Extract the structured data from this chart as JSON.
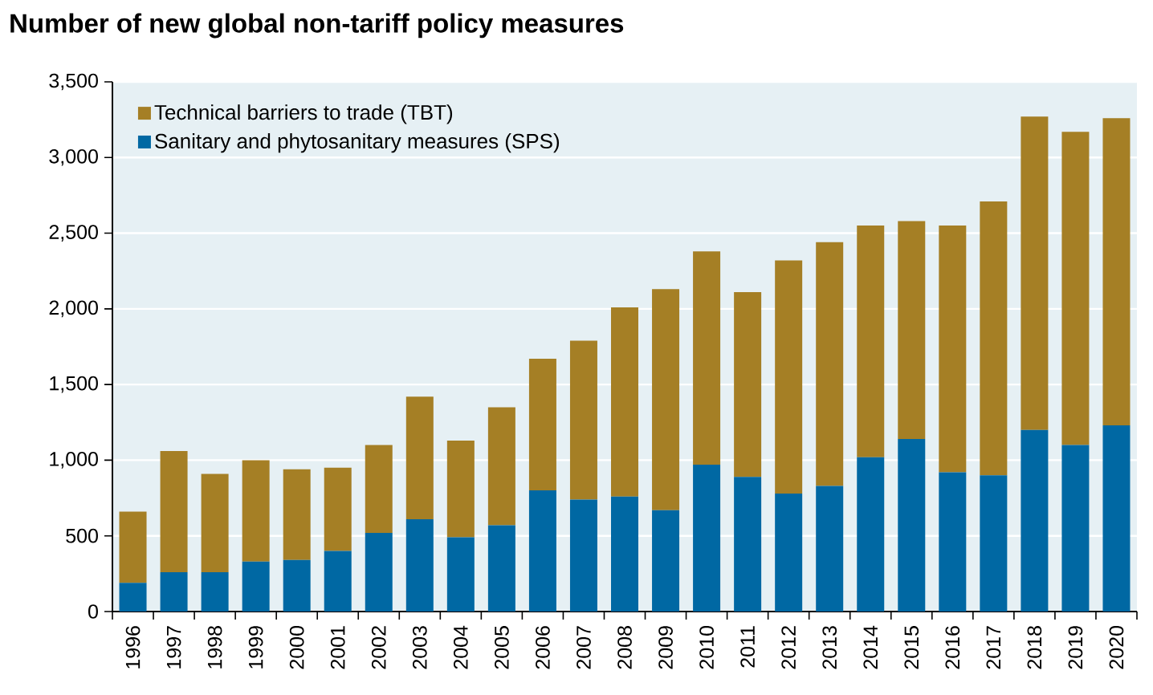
{
  "chart_data": {
    "type": "bar",
    "title": "Number of new global non-tariff policy measures",
    "stacked": true,
    "categories": [
      "1996",
      "1997",
      "1998",
      "1999",
      "2000",
      "2001",
      "2002",
      "2003",
      "2004",
      "2005",
      "2006",
      "2007",
      "2008",
      "2009",
      "2010",
      "2011",
      "2012",
      "2013",
      "2014",
      "2015",
      "2016",
      "2017",
      "2018",
      "2019",
      "2020"
    ],
    "series": [
      {
        "name": "Sanitary and phytosanitary measures (SPS)",
        "color": "#0068a3",
        "values": [
          190,
          260,
          260,
          330,
          340,
          400,
          520,
          610,
          490,
          570,
          800,
          740,
          760,
          670,
          970,
          890,
          780,
          830,
          1020,
          1140,
          920,
          900,
          1200,
          1100,
          1230
        ]
      },
      {
        "name": "Technical barriers to trade (TBT)",
        "color": "#a57f25",
        "values": [
          470,
          800,
          650,
          670,
          600,
          550,
          580,
          810,
          640,
          780,
          870,
          1050,
          1250,
          1460,
          1410,
          1220,
          1540,
          1610,
          1530,
          1440,
          1630,
          1810,
          2070,
          2070,
          2030
        ]
      }
    ],
    "ylim": [
      0,
      3500
    ],
    "yticks": [
      0,
      {
        "value": 500,
        "label": "500"
      },
      {
        "value": 1000,
        "label": "1,000"
      },
      {
        "value": 1500,
        "label": "1,500"
      },
      {
        "value": 2000,
        "label": "2,000"
      },
      {
        "value": 2500,
        "label": "2,500"
      },
      {
        "value": 3000,
        "label": "3,000"
      },
      {
        "value": 3500,
        "label": "3,500"
      }
    ],
    "grid": "y",
    "legend": "top left"
  }
}
